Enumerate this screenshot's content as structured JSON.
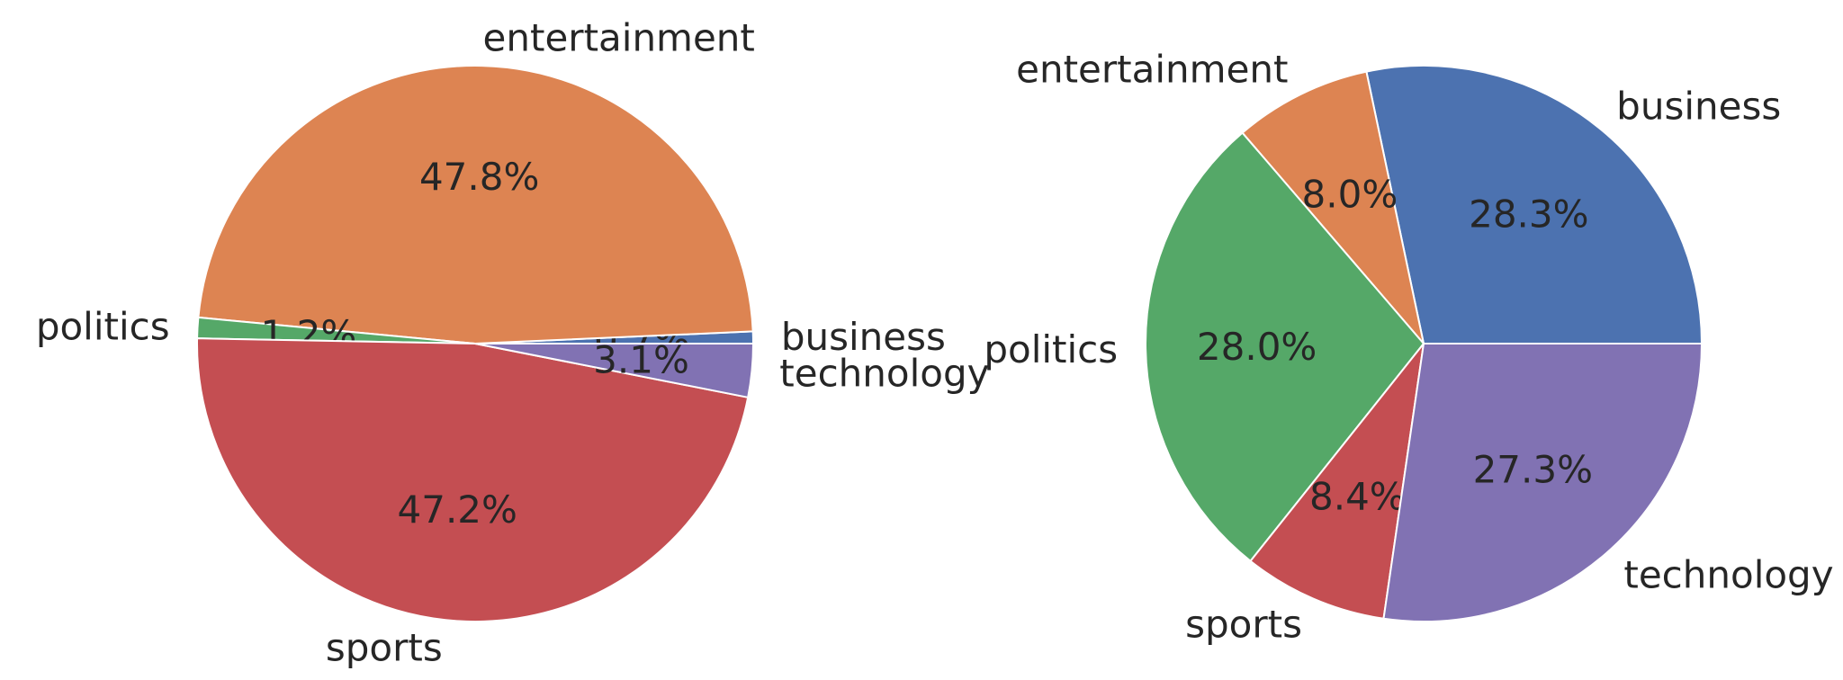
{
  "chart_data": [
    {
      "type": "pie",
      "title": "",
      "slices": [
        {
          "label": "business",
          "percent": 0.7,
          "color": "#4c72b0"
        },
        {
          "label": "entertainment",
          "percent": 47.8,
          "color": "#dd8452"
        },
        {
          "label": "politics",
          "percent": 1.2,
          "color": "#55a868"
        },
        {
          "label": "sports",
          "percent": 47.2,
          "color": "#c44e52"
        },
        {
          "label": "technology",
          "percent": 3.1,
          "color": "#8172b3"
        }
      ],
      "start_angle_deg": 0,
      "direction": "counterclockwise",
      "percent_format": "{v}%"
    },
    {
      "type": "pie",
      "title": "",
      "slices": [
        {
          "label": "business",
          "percent": 28.3,
          "color": "#4c72b0"
        },
        {
          "label": "entertainment",
          "percent": 8.0,
          "color": "#dd8452"
        },
        {
          "label": "politics",
          "percent": 28.0,
          "color": "#55a868"
        },
        {
          "label": "sports",
          "percent": 8.4,
          "color": "#c44e52"
        },
        {
          "label": "technology",
          "percent": 27.3,
          "color": "#8172b3"
        }
      ],
      "start_angle_deg": 0,
      "direction": "counterclockwise",
      "percent_format": "{v}%"
    }
  ]
}
